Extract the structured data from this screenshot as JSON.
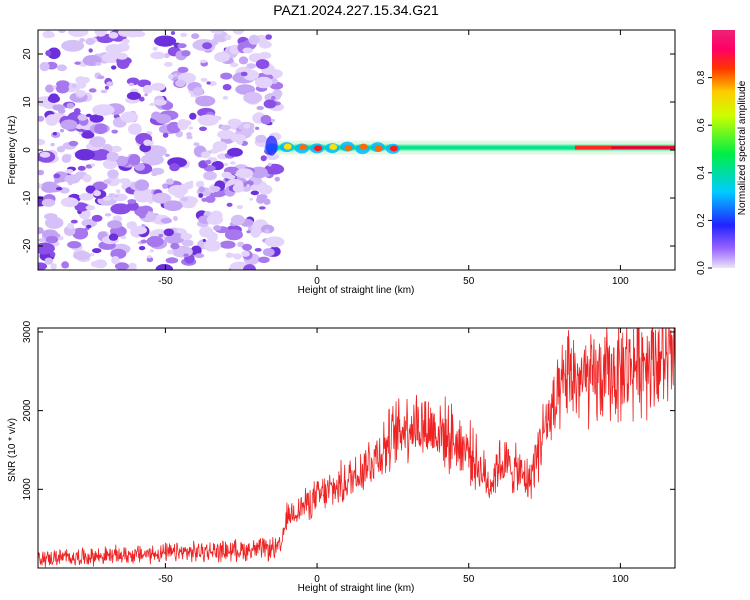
{
  "title": "PAZ1.2024.227.15.34.G21",
  "chart_data": [
    {
      "type": "heatmap",
      "xlabel": "Height of straight line (km)",
      "ylabel": "Frequency (Hz)",
      "xlim": [
        -92,
        118
      ],
      "ylim": [
        -25,
        25
      ],
      "x_ticks": [
        -50,
        0,
        50,
        100
      ],
      "y_ticks": [
        -20,
        -10,
        0,
        10,
        20
      ],
      "colorbar": {
        "label": "Normalized spectral amplitude",
        "range": [
          0,
          1
        ],
        "ticks": [
          0.0,
          0.2,
          0.4,
          0.6,
          0.8
        ],
        "colormap": "rainbow (violet-blue-cyan-green-yellow-red-magenta)"
      },
      "noise_region_x": [
        -92,
        -15
      ],
      "signal_band": [
        {
          "x": -15,
          "amplitude": 0.3
        },
        {
          "x": -10,
          "amplitude": 0.5
        },
        {
          "x": -5,
          "amplitude": 0.75
        },
        {
          "x": 0,
          "amplitude": 0.85
        },
        {
          "x": 5,
          "amplitude": 0.6
        },
        {
          "x": 10,
          "amplitude": 0.8
        },
        {
          "x": 15,
          "amplitude": 0.75
        },
        {
          "x": 20,
          "amplitude": 0.7
        },
        {
          "x": 25,
          "amplitude": 0.85
        },
        {
          "x": 40,
          "amplitude": 0.5
        },
        {
          "x": 60,
          "amplitude": 0.45
        },
        {
          "x": 80,
          "amplitude": 0.55
        },
        {
          "x": 100,
          "amplitude": 0.95
        },
        {
          "x": 118,
          "amplitude": 1.0
        }
      ],
      "signal_frequency": 0.5
    },
    {
      "type": "line",
      "xlabel": "Height of straight line (km)",
      "ylabel": "SNR (10 * v/v)",
      "xlim": [
        -92,
        118
      ],
      "ylim": [
        0,
        3050
      ],
      "x_ticks": [
        -50,
        0,
        50,
        100
      ],
      "y_ticks": [
        1000,
        2000,
        3000
      ],
      "series": [
        {
          "color": "#ee2222",
          "trend": [
            {
              "x": -92,
              "y": 120
            },
            {
              "x": -60,
              "y": 170
            },
            {
              "x": -30,
              "y": 220
            },
            {
              "x": -12,
              "y": 250
            },
            {
              "x": -10,
              "y": 650
            },
            {
              "x": 0,
              "y": 900
            },
            {
              "x": 10,
              "y": 1100
            },
            {
              "x": 20,
              "y": 1450
            },
            {
              "x": 25,
              "y": 1650
            },
            {
              "x": 30,
              "y": 1850
            },
            {
              "x": 40,
              "y": 1750
            },
            {
              "x": 50,
              "y": 1500
            },
            {
              "x": 57,
              "y": 1050
            },
            {
              "x": 60,
              "y": 1350
            },
            {
              "x": 65,
              "y": 1250
            },
            {
              "x": 70,
              "y": 1100
            },
            {
              "x": 75,
              "y": 1800
            },
            {
              "x": 80,
              "y": 2100
            },
            {
              "x": 82,
              "y": 2450
            },
            {
              "x": 90,
              "y": 2350
            },
            {
              "x": 100,
              "y": 2500
            },
            {
              "x": 110,
              "y": 2700
            },
            {
              "x": 118,
              "y": 2600
            }
          ]
        }
      ]
    }
  ]
}
